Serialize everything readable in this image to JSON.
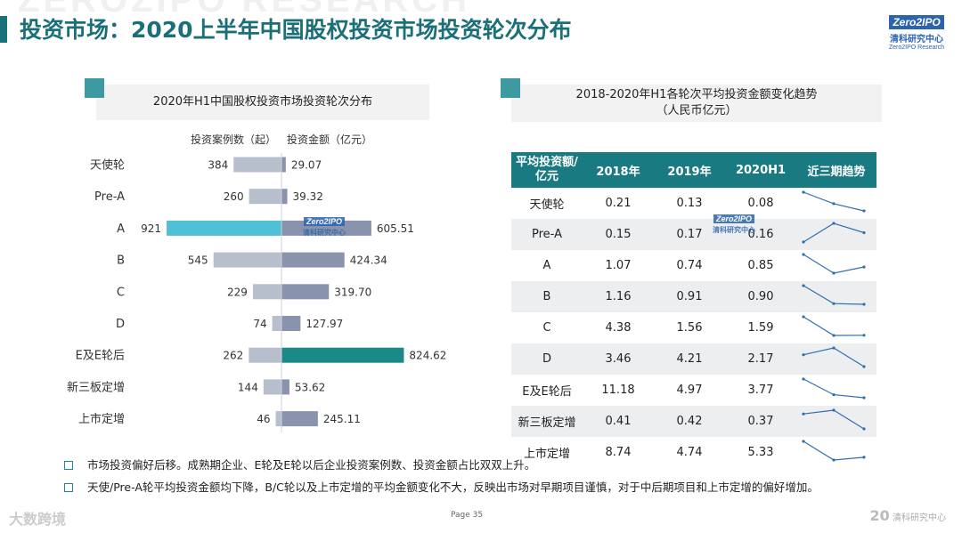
{
  "watermark": "ZEROZIPO RESEARCH",
  "page_title": "投资市场：2020上半年中国股权投资市场投资轮次分布",
  "logo": {
    "line1": "Zero2IPO",
    "line2": "清科研究中心",
    "line3": "Zero2IPO Research"
  },
  "left_panel": {
    "title": "2020年H1中国股权投资市场投资轮次分布"
  },
  "right_panel": {
    "title_line1": "2018-2020年H1各轮次平均投资金额变化趋势",
    "title_line2": "（人民币亿元）"
  },
  "colors": {
    "primary": "#1a7a82",
    "cases_bar": "#b8bfcc",
    "amount_bar": "#8a93ad",
    "highlight_cases": "#4fc0d6",
    "highlight_amount": "#1b8a86"
  },
  "chart_data": {
    "type": "bar",
    "title": "2020年H1中国股权投资市场投资轮次分布",
    "categories": [
      "天使轮",
      "Pre-A",
      "A",
      "B",
      "C",
      "D",
      "E及E轮后",
      "新三板定增",
      "上市定增"
    ],
    "series": [
      {
        "name": "投资案例数（起）",
        "values": [
          384,
          260,
          921,
          545,
          229,
          74,
          262,
          144,
          46
        ],
        "labels": [
          "384",
          "260",
          "921",
          "545",
          "229",
          "74",
          "262",
          "144",
          "46"
        ]
      },
      {
        "name": "投资金额（亿元）",
        "values": [
          29.07,
          39.32,
          605.51,
          424.34,
          319.7,
          127.97,
          824.62,
          53.62,
          245.11
        ],
        "labels": [
          "29.07",
          "39.32",
          "605.51",
          "424.34",
          "319.70",
          "127.97",
          "824.62",
          "53.62",
          "245.11"
        ]
      }
    ],
    "highlight": {
      "cases": "A",
      "amount": "E及E轮后"
    }
  },
  "table": {
    "headers": [
      "平均投资额/亿元",
      "2018年",
      "2019年",
      "2020H1",
      "近三期趋势"
    ],
    "header_line1": "平均投资额/",
    "header_line2": "亿元",
    "rows": [
      {
        "label": "天使轮",
        "v2018": "0.21",
        "v2019": "0.13",
        "v2020": "0.08",
        "trend": [
          0.21,
          0.13,
          0.08
        ]
      },
      {
        "label": "Pre-A",
        "v2018": "0.15",
        "v2019": "0.17",
        "v2020": "0.16",
        "trend": [
          0.15,
          0.17,
          0.16
        ]
      },
      {
        "label": "A",
        "v2018": "1.07",
        "v2019": "0.74",
        "v2020": "0.85",
        "trend": [
          1.07,
          0.74,
          0.85
        ]
      },
      {
        "label": "B",
        "v2018": "1.16",
        "v2019": "0.91",
        "v2020": "0.90",
        "trend": [
          1.16,
          0.91,
          0.9
        ]
      },
      {
        "label": "C",
        "v2018": "4.38",
        "v2019": "1.56",
        "v2020": "1.59",
        "trend": [
          4.38,
          1.56,
          1.59
        ]
      },
      {
        "label": "D",
        "v2018": "3.46",
        "v2019": "4.21",
        "v2020": "2.17",
        "trend": [
          3.46,
          4.21,
          2.17
        ]
      },
      {
        "label": "E及E轮后",
        "v2018": "11.18",
        "v2019": "4.97",
        "v2020": "3.77",
        "trend": [
          11.18,
          4.97,
          3.77
        ]
      },
      {
        "label": "新三板定增",
        "v2018": "0.41",
        "v2019": "0.42",
        "v2020": "0.37",
        "trend": [
          0.41,
          0.42,
          0.37
        ]
      },
      {
        "label": "上市定增",
        "v2018": "8.74",
        "v2019": "4.74",
        "v2020": "5.33",
        "trend": [
          8.74,
          4.74,
          5.33
        ]
      }
    ]
  },
  "bullets": [
    "市场投资偏好后移。成熟期企业、E轮及E轮以后企业投资案例数、投资金额占比双双上升。",
    "天使/Pre-A轮平均投资金额均下降，B/C轮以及上市定增的平均金额变化不大，反映出市场对早期项目谨慎，对于中后期项目和上市定增的偏好增加。"
  ],
  "footer": {
    "page": "Page  35",
    "left_brand": "大数跨境",
    "right_brand": "清科研究中心",
    "right_mark": "20"
  }
}
